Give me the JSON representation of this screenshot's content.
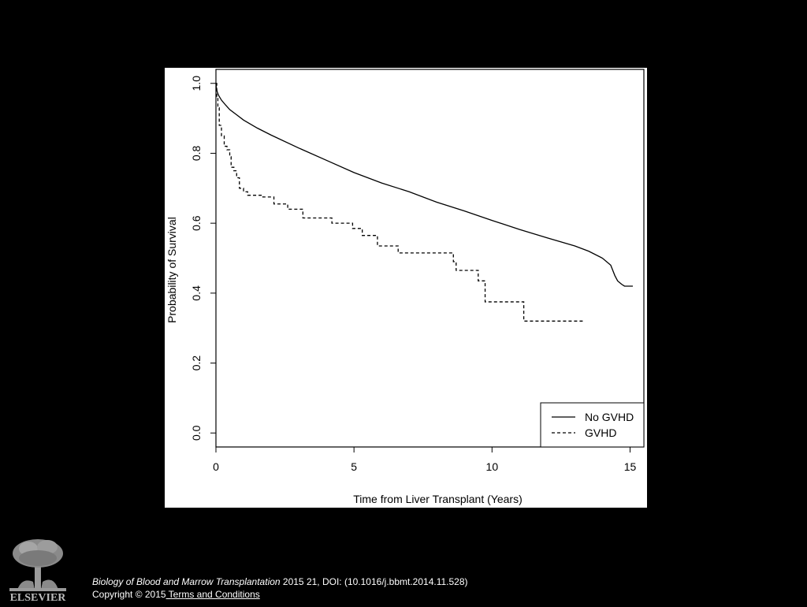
{
  "chart_data": {
    "type": "line",
    "xlabel": "Time from Liver Transplant (Years)",
    "ylabel": "Probability of Survival",
    "xlim": [
      0,
      15.5
    ],
    "ylim": [
      -0.04,
      1.04
    ],
    "x_ticks": [
      0,
      5,
      10,
      15
    ],
    "y_ticks": [
      0.0,
      0.2,
      0.4,
      0.6,
      0.8,
      1.0
    ],
    "x_tick_labels": [
      "0",
      "5",
      "10",
      "15"
    ],
    "y_tick_labels": [
      "0.0",
      "0.2",
      "0.4",
      "0.6",
      "0.8",
      "1.0"
    ],
    "grid": false,
    "legend_position": "bottom-right",
    "series": [
      {
        "name": "No GVHD",
        "style": "solid",
        "step": false,
        "points": [
          [
            0,
            1.0
          ],
          [
            0.02,
            0.985
          ],
          [
            0.05,
            0.975
          ],
          [
            0.1,
            0.965
          ],
          [
            0.2,
            0.952
          ],
          [
            0.35,
            0.938
          ],
          [
            0.5,
            0.925
          ],
          [
            0.75,
            0.91
          ],
          [
            1,
            0.895
          ],
          [
            1.5,
            0.872
          ],
          [
            2,
            0.852
          ],
          [
            3,
            0.815
          ],
          [
            4,
            0.78
          ],
          [
            5,
            0.745
          ],
          [
            6,
            0.715
          ],
          [
            7,
            0.69
          ],
          [
            8,
            0.66
          ],
          [
            9,
            0.635
          ],
          [
            10,
            0.608
          ],
          [
            11,
            0.582
          ],
          [
            12,
            0.558
          ],
          [
            13,
            0.535
          ],
          [
            13.5,
            0.52
          ],
          [
            14,
            0.5
          ],
          [
            14.3,
            0.48
          ],
          [
            14.45,
            0.45
          ],
          [
            14.55,
            0.435
          ],
          [
            14.7,
            0.425
          ],
          [
            14.8,
            0.42
          ],
          [
            15.1,
            0.42
          ]
        ]
      },
      {
        "name": "GVHD",
        "style": "dashed",
        "step": true,
        "points": [
          [
            0,
            1.0
          ],
          [
            0.03,
            0.96
          ],
          [
            0.07,
            0.93
          ],
          [
            0.12,
            0.88
          ],
          [
            0.2,
            0.85
          ],
          [
            0.3,
            0.82
          ],
          [
            0.4,
            0.81
          ],
          [
            0.5,
            0.79
          ],
          [
            0.55,
            0.76
          ],
          [
            0.65,
            0.75
          ],
          [
            0.75,
            0.73
          ],
          [
            0.85,
            0.7
          ],
          [
            1.0,
            0.69
          ],
          [
            1.15,
            0.68
          ],
          [
            1.7,
            0.675
          ],
          [
            2.1,
            0.655
          ],
          [
            2.6,
            0.64
          ],
          [
            3.15,
            0.615
          ],
          [
            4.2,
            0.6
          ],
          [
            4.95,
            0.585
          ],
          [
            5.3,
            0.565
          ],
          [
            5.85,
            0.535
          ],
          [
            6.6,
            0.515
          ],
          [
            8.6,
            0.49
          ],
          [
            8.7,
            0.465
          ],
          [
            9.5,
            0.435
          ],
          [
            9.75,
            0.375
          ],
          [
            11.15,
            0.32
          ],
          [
            13.3,
            0.32
          ]
        ]
      }
    ]
  },
  "footer": {
    "journal": "Biology of Blood and Marrow Transplantation",
    "citation": " 2015 21, DOI: (10.1016/j.bbmt.2014.11.528)",
    "copyright": "Copyright © 2015",
    "terms_link": " Terms and Conditions"
  },
  "logo": {
    "text": "ELSEVIER",
    "icon": "elsevier-tree-icon"
  }
}
